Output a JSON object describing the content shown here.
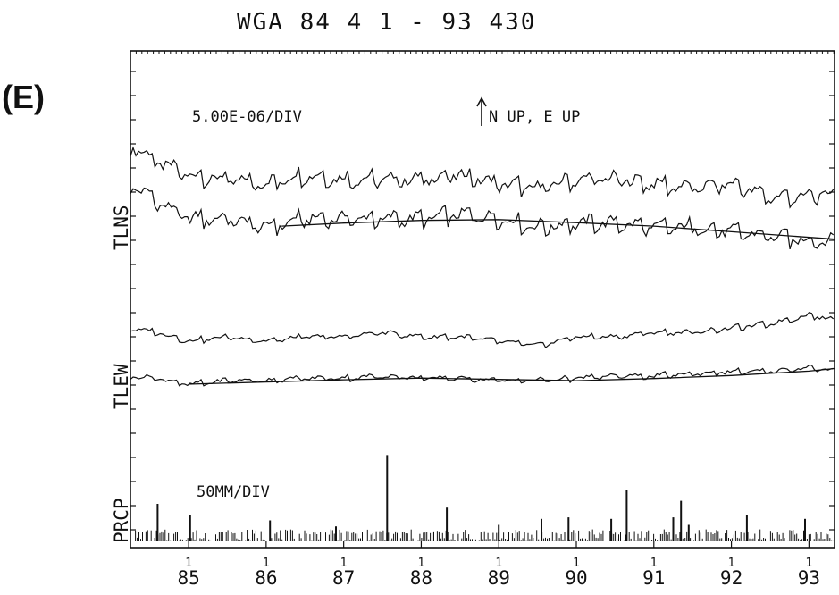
{
  "panel_label": "(E)",
  "title": "WGA  84 4 1 - 93 430",
  "chart_data": {
    "type": "line",
    "title": "WGA  84 4 1 - 93 430",
    "xlabel": "",
    "x_tick_labels": [
      "85",
      "86",
      "87",
      "88",
      "89",
      "90",
      "91",
      "92",
      "93"
    ],
    "x_ticks": [
      85,
      86,
      87,
      88,
      89,
      90,
      91,
      92,
      93
    ],
    "xlim": [
      84.25,
      93.33
    ],
    "grid": false,
    "legend": "none",
    "annotations": {
      "scale_tilt": "5.00E-06/DIV",
      "direction": "N UP, E UP",
      "scale_precip": "50MM/DIV"
    },
    "axis_labels": {
      "tlns": "TLNS",
      "tlew": "TLEW",
      "prcp": "PRCP"
    },
    "series": [
      {
        "group": "TLNS",
        "kind": "observed",
        "x": [
          84.25,
          84.6,
          85.0,
          85.5,
          86.0,
          86.5,
          87.0,
          87.5,
          88.0,
          88.5,
          89.0,
          89.5,
          90.0,
          90.5,
          91.0,
          91.5,
          92.0,
          92.5,
          93.0,
          93.33
        ],
        "y": [
          6.3,
          5.9,
          5.6,
          5.5,
          5.4,
          5.6,
          5.5,
          5.5,
          5.5,
          5.6,
          5.4,
          5.3,
          5.5,
          5.5,
          5.4,
          5.3,
          5.4,
          5.1,
          5.1,
          5.2
        ]
      },
      {
        "group": "TLNS",
        "kind": "residual",
        "x": [
          84.25,
          84.6,
          85.0,
          85.5,
          86.0,
          86.5,
          87.0,
          87.5,
          88.0,
          88.5,
          89.0,
          89.5,
          90.0,
          90.5,
          91.0,
          91.5,
          92.0,
          92.5,
          93.0,
          93.33
        ],
        "y": [
          5.4,
          5.0,
          4.6,
          4.6,
          4.4,
          4.6,
          4.6,
          4.6,
          4.6,
          4.7,
          4.6,
          4.4,
          4.5,
          4.5,
          4.4,
          4.4,
          4.3,
          4.2,
          4.1,
          4.1
        ]
      },
      {
        "group": "TLNS",
        "kind": "trend",
        "x": [
          86.2,
          87.0,
          88.0,
          89.0,
          90.0,
          91.0,
          92.0,
          93.33
        ],
        "y": [
          4.45,
          4.52,
          4.58,
          4.6,
          4.53,
          4.45,
          4.32,
          4.15
        ]
      },
      {
        "group": "TLEW",
        "kind": "observed",
        "x": [
          84.25,
          84.6,
          85.0,
          85.5,
          86.0,
          86.5,
          87.0,
          87.5,
          88.0,
          88.5,
          89.0,
          89.5,
          90.0,
          90.5,
          91.0,
          91.5,
          92.0,
          92.5,
          93.0,
          93.33
        ],
        "y": [
          2.1,
          2.0,
          1.8,
          1.9,
          1.8,
          1.9,
          1.9,
          2.0,
          1.9,
          1.9,
          1.8,
          1.7,
          1.9,
          1.9,
          2.0,
          2.0,
          2.1,
          2.2,
          2.4,
          2.3
        ]
      },
      {
        "group": "TLEW",
        "kind": "residual",
        "x": [
          84.25,
          84.6,
          85.0,
          85.5,
          86.0,
          86.5,
          87.0,
          87.5,
          88.0,
          88.5,
          89.0,
          89.5,
          90.0,
          90.5,
          91.0,
          91.5,
          92.0,
          92.5,
          93.0,
          93.33
        ],
        "y": [
          1.0,
          0.95,
          0.8,
          0.9,
          0.9,
          0.95,
          0.95,
          1.0,
          0.95,
          0.95,
          0.9,
          0.9,
          0.95,
          1.0,
          1.0,
          1.05,
          1.1,
          1.1,
          1.2,
          1.1
        ]
      },
      {
        "group": "TLEW",
        "kind": "trend",
        "x": [
          85.0,
          86.0,
          87.0,
          88.0,
          89.0,
          90.0,
          91.0,
          92.0,
          93.0,
          93.33
        ],
        "y": [
          0.82,
          0.87,
          0.92,
          0.96,
          0.93,
          0.9,
          0.95,
          1.02,
          1.12,
          1.18
        ]
      }
    ],
    "precipitation": {
      "name": "PRCP",
      "unit": "mm",
      "notable_peaks": [
        {
          "x": 84.6,
          "value": 50
        },
        {
          "x": 85.02,
          "value": 35
        },
        {
          "x": 86.05,
          "value": 28
        },
        {
          "x": 86.9,
          "value": 20
        },
        {
          "x": 87.56,
          "value": 115
        },
        {
          "x": 88.33,
          "value": 45
        },
        {
          "x": 89.0,
          "value": 22
        },
        {
          "x": 89.55,
          "value": 30
        },
        {
          "x": 89.9,
          "value": 32
        },
        {
          "x": 90.45,
          "value": 30
        },
        {
          "x": 90.65,
          "value": 68
        },
        {
          "x": 91.25,
          "value": 32
        },
        {
          "x": 91.35,
          "value": 54
        },
        {
          "x": 91.45,
          "value": 22
        },
        {
          "x": 92.2,
          "value": 35
        },
        {
          "x": 92.95,
          "value": 30
        }
      ]
    }
  }
}
